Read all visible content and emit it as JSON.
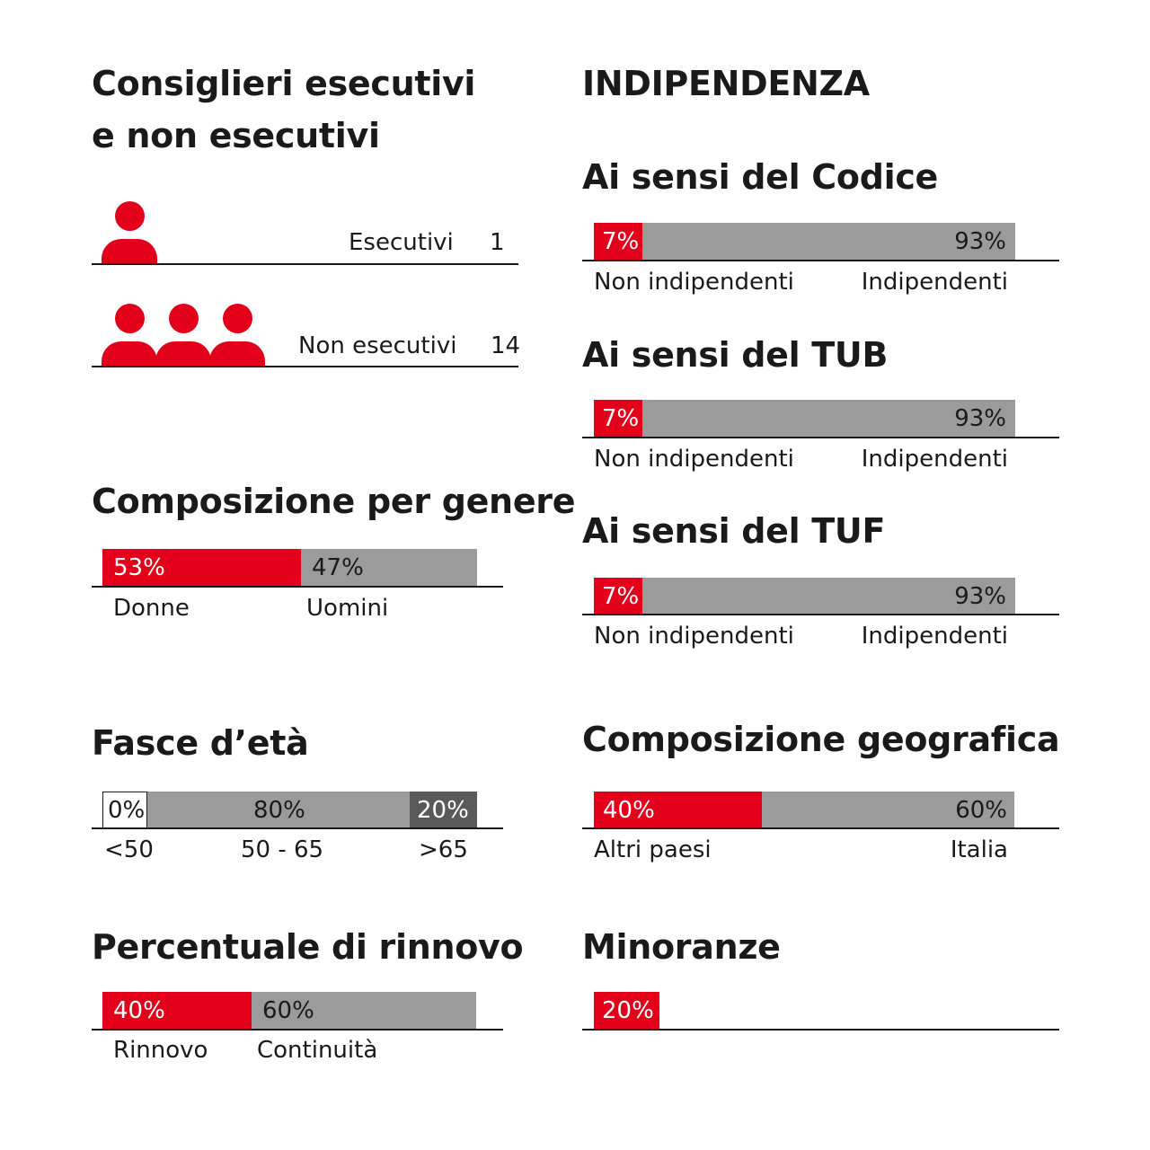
{
  "colors": {
    "red": "#e2001a",
    "gray": "#9b9b9b",
    "dark_gray": "#5a5a5a",
    "text": "#1a1a1a"
  },
  "executives": {
    "title_line1": "Consiglieri esecutivi",
    "title_line2": "e non esecutivi",
    "rows": [
      {
        "label": "Esecutivi",
        "count": "1",
        "icon": "person-icon",
        "icon_count": 1
      },
      {
        "label": "Non esecutivi",
        "count": "14",
        "icon": "person-icon",
        "icon_count": 3
      }
    ]
  },
  "gender": {
    "title": "Composizione per genere",
    "segments": [
      {
        "value_label": "53%",
        "caption": "Donne",
        "value": 53
      },
      {
        "value_label": "47%",
        "caption": "Uomini",
        "value": 47
      }
    ]
  },
  "age": {
    "title": "Fasce d’età",
    "segments": [
      {
        "value_label": "0%",
        "caption": "<50",
        "value": 0
      },
      {
        "value_label": "80%",
        "caption": "50 - 65",
        "value": 80
      },
      {
        "value_label": "20%",
        "caption": ">65",
        "value": 20
      }
    ]
  },
  "renewal": {
    "title": "Percentuale di rinnovo",
    "segments": [
      {
        "value_label": "40%",
        "caption": "Rinnovo",
        "value": 40
      },
      {
        "value_label": "60%",
        "caption": "Continuità",
        "value": 60
      }
    ]
  },
  "independence": {
    "title": "INDIPENDENZA",
    "groups": [
      {
        "title": "Ai sensi del Codice",
        "left_label": "7%",
        "right_label": "93%",
        "left_caption": "Non indipendenti",
        "right_caption": "Indipendenti",
        "left_value": 7,
        "right_value": 93
      },
      {
        "title": "Ai sensi del TUB",
        "left_label": "7%",
        "right_label": "93%",
        "left_caption": "Non indipendenti",
        "right_caption": "Indipendenti",
        "left_value": 7,
        "right_value": 93
      },
      {
        "title": "Ai sensi del TUF",
        "left_label": "7%",
        "right_label": "93%",
        "left_caption": "Non indipendenti",
        "right_caption": "Indipendenti",
        "left_value": 7,
        "right_value": 93
      }
    ]
  },
  "geography": {
    "title": "Composizione geografica",
    "segments": [
      {
        "value_label": "40%",
        "caption": "Altri paesi",
        "value": 40
      },
      {
        "value_label": "60%",
        "caption": "Italia",
        "value": 60
      }
    ]
  },
  "minorities": {
    "title": "Minoranze",
    "value_label": "20%",
    "value": 20
  },
  "chart_data": [
    {
      "type": "bar",
      "title": "Composizione per genere",
      "categories": [
        "Donne",
        "Uomini"
      ],
      "values": [
        53,
        47
      ],
      "unit": "%"
    },
    {
      "type": "bar",
      "title": "Fasce d’età",
      "categories": [
        "<50",
        "50 - 65",
        ">65"
      ],
      "values": [
        0,
        80,
        20
      ],
      "unit": "%"
    },
    {
      "type": "bar",
      "title": "Percentuale di rinnovo",
      "categories": [
        "Rinnovo",
        "Continuità"
      ],
      "values": [
        40,
        60
      ],
      "unit": "%"
    },
    {
      "type": "bar",
      "title": "Ai sensi del Codice",
      "categories": [
        "Non indipendenti",
        "Indipendenti"
      ],
      "values": [
        7,
        93
      ],
      "unit": "%"
    },
    {
      "type": "bar",
      "title": "Ai sensi del TUB",
      "categories": [
        "Non indipendenti",
        "Indipendenti"
      ],
      "values": [
        7,
        93
      ],
      "unit": "%"
    },
    {
      "type": "bar",
      "title": "Ai sensi del TUF",
      "categories": [
        "Non indipendenti",
        "Indipendenti"
      ],
      "values": [
        7,
        93
      ],
      "unit": "%"
    },
    {
      "type": "bar",
      "title": "Composizione geografica",
      "categories": [
        "Altri paesi",
        "Italia"
      ],
      "values": [
        40,
        60
      ],
      "unit": "%"
    },
    {
      "type": "bar",
      "title": "Minoranze",
      "categories": [
        ""
      ],
      "values": [
        20
      ],
      "unit": "%"
    },
    {
      "type": "table",
      "title": "Consiglieri esecutivi e non esecutivi",
      "categories": [
        "Esecutivi",
        "Non esecutivi"
      ],
      "values": [
        1,
        14
      ]
    }
  ]
}
